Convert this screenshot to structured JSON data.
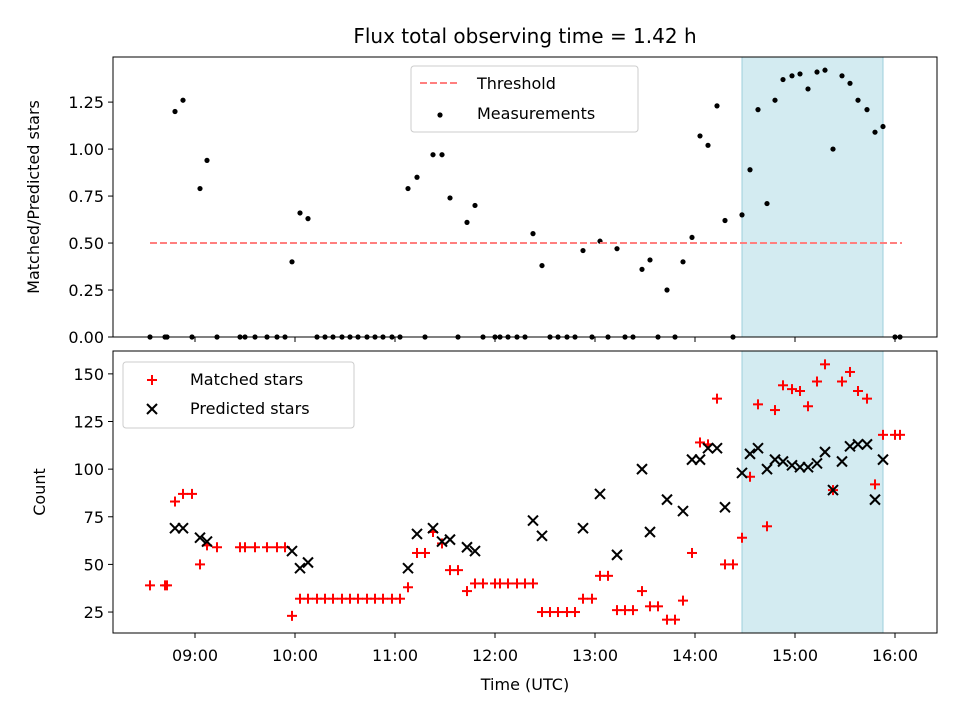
{
  "chart_data": {
    "title": "Flux total observing time = 1.42 h",
    "xlabel": "Time (UTC)",
    "xticks": [
      {
        "v": 9,
        "label": "09:00"
      },
      {
        "v": 10,
        "label": "10:00"
      },
      {
        "v": 11,
        "label": "11:00"
      },
      {
        "v": 12,
        "label": "12:00"
      },
      {
        "v": 13,
        "label": "13:00"
      },
      {
        "v": 14,
        "label": "14:00"
      },
      {
        "v": 15,
        "label": "15:00"
      },
      {
        "v": 16,
        "label": "16:00"
      }
    ],
    "xlim": [
      8.18,
      16.42
    ],
    "highlight_span": [
      14.47,
      15.88
    ],
    "highlight_color": "#d3ebf1",
    "panels": [
      {
        "type": "scatter",
        "ylabel": "Matched/Predicted stars",
        "ylim": [
          0,
          1.49
        ],
        "yticks": [
          {
            "v": 0,
            "label": "0.00"
          },
          {
            "v": 0.25,
            "label": "0.25"
          },
          {
            "v": 0.5,
            "label": "0.50"
          },
          {
            "v": 0.75,
            "label": "0.75"
          },
          {
            "v": 1.0,
            "label": "1.00"
          },
          {
            "v": 1.25,
            "label": "1.25"
          }
        ],
        "threshold": {
          "name": "Threshold",
          "value": 0.5,
          "x_range": [
            8.55,
            16.07
          ],
          "color": "#ff7f7f"
        },
        "legend": {
          "position": "top-center",
          "entries": [
            "Threshold",
            "Measurements"
          ]
        },
        "series": [
          {
            "name": "Measurements",
            "color": "#000000",
            "points": [
              [
                8.55,
                0
              ],
              [
                8.7,
                0
              ],
              [
                8.72,
                0
              ],
              [
                8.8,
                1.2
              ],
              [
                8.88,
                1.26
              ],
              [
                8.97,
                0
              ],
              [
                9.05,
                0.79
              ],
              [
                9.12,
                0.94
              ],
              [
                9.22,
                0
              ],
              [
                9.45,
                0
              ],
              [
                9.5,
                0
              ],
              [
                9.6,
                0
              ],
              [
                9.72,
                0
              ],
              [
                9.82,
                0
              ],
              [
                9.9,
                0
              ],
              [
                9.97,
                0.4
              ],
              [
                10.05,
                0.66
              ],
              [
                10.13,
                0.63
              ],
              [
                10.22,
                0
              ],
              [
                10.3,
                0
              ],
              [
                10.38,
                0
              ],
              [
                10.47,
                0
              ],
              [
                10.55,
                0
              ],
              [
                10.63,
                0
              ],
              [
                10.72,
                0
              ],
              [
                10.8,
                0
              ],
              [
                10.88,
                0
              ],
              [
                10.97,
                0
              ],
              [
                11.05,
                0
              ],
              [
                11.13,
                0.79
              ],
              [
                11.22,
                0.85
              ],
              [
                11.3,
                0
              ],
              [
                11.38,
                0.97
              ],
              [
                11.47,
                0.97
              ],
              [
                11.55,
                0.74
              ],
              [
                11.63,
                0
              ],
              [
                11.72,
                0.61
              ],
              [
                11.8,
                0.7
              ],
              [
                11.88,
                0
              ],
              [
                12.0,
                0
              ],
              [
                12.05,
                0
              ],
              [
                12.13,
                0
              ],
              [
                12.22,
                0
              ],
              [
                12.3,
                0
              ],
              [
                12.38,
                0.55
              ],
              [
                12.47,
                0.38
              ],
              [
                12.55,
                0
              ],
              [
                12.63,
                0
              ],
              [
                12.72,
                0
              ],
              [
                12.8,
                0
              ],
              [
                12.88,
                0.46
              ],
              [
                12.97,
                0
              ],
              [
                13.05,
                0.51
              ],
              [
                13.13,
                0
              ],
              [
                13.22,
                0.47
              ],
              [
                13.3,
                0
              ],
              [
                13.38,
                0
              ],
              [
                13.47,
                0.36
              ],
              [
                13.55,
                0.41
              ],
              [
                13.63,
                0
              ],
              [
                13.72,
                0.25
              ],
              [
                13.8,
                0
              ],
              [
                13.88,
                0.4
              ],
              [
                13.97,
                0.53
              ],
              [
                14.05,
                1.07
              ],
              [
                14.13,
                1.02
              ],
              [
                14.22,
                1.23
              ],
              [
                14.3,
                0.62
              ],
              [
                14.38,
                0
              ],
              [
                14.47,
                0.65
              ],
              [
                14.55,
                0.89
              ],
              [
                14.63,
                1.21
              ],
              [
                14.72,
                0.71
              ],
              [
                14.8,
                1.26
              ],
              [
                14.88,
                1.37
              ],
              [
                14.97,
                1.39
              ],
              [
                15.05,
                1.4
              ],
              [
                15.13,
                1.32
              ],
              [
                15.22,
                1.41
              ],
              [
                15.3,
                1.42
              ],
              [
                15.38,
                1.0
              ],
              [
                15.47,
                1.39
              ],
              [
                15.55,
                1.35
              ],
              [
                15.63,
                1.26
              ],
              [
                15.72,
                1.21
              ],
              [
                15.8,
                1.09
              ],
              [
                15.88,
                1.12
              ],
              [
                16.0,
                0
              ],
              [
                16.05,
                0
              ]
            ]
          }
        ]
      },
      {
        "type": "scatter",
        "ylabel": "Count",
        "ylim": [
          14,
          162
        ],
        "yticks": [
          {
            "v": 25,
            "label": "25"
          },
          {
            "v": 50,
            "label": "50"
          },
          {
            "v": 75,
            "label": "75"
          },
          {
            "v": 100,
            "label": "100"
          },
          {
            "v": 125,
            "label": "125"
          },
          {
            "v": 150,
            "label": "150"
          }
        ],
        "legend": {
          "position": "top-left",
          "entries": [
            "Matched stars",
            "Predicted stars"
          ]
        },
        "series": [
          {
            "name": "Matched stars",
            "marker": "+",
            "color": "#ff0000",
            "points": [
              [
                8.55,
                39
              ],
              [
                8.7,
                39
              ],
              [
                8.72,
                39
              ],
              [
                8.8,
                83
              ],
              [
                8.88,
                87
              ],
              [
                8.97,
                87
              ],
              [
                9.05,
                50
              ],
              [
                9.12,
                60
              ],
              [
                9.22,
                59
              ],
              [
                9.45,
                59
              ],
              [
                9.5,
                59
              ],
              [
                9.6,
                59
              ],
              [
                9.72,
                59
              ],
              [
                9.82,
                59
              ],
              [
                9.9,
                59
              ],
              [
                9.97,
                23
              ],
              [
                10.05,
                32
              ],
              [
                10.13,
                32
              ],
              [
                10.22,
                32
              ],
              [
                10.3,
                32
              ],
              [
                10.38,
                32
              ],
              [
                10.47,
                32
              ],
              [
                10.55,
                32
              ],
              [
                10.63,
                32
              ],
              [
                10.72,
                32
              ],
              [
                10.8,
                32
              ],
              [
                10.88,
                32
              ],
              [
                10.97,
                32
              ],
              [
                11.05,
                32
              ],
              [
                11.13,
                38
              ],
              [
                11.22,
                56
              ],
              [
                11.3,
                56
              ],
              [
                11.38,
                67
              ],
              [
                11.47,
                61
              ],
              [
                11.55,
                47
              ],
              [
                11.63,
                47
              ],
              [
                11.72,
                36
              ],
              [
                11.8,
                40
              ],
              [
                11.88,
                40
              ],
              [
                12.0,
                40
              ],
              [
                12.05,
                40
              ],
              [
                12.13,
                40
              ],
              [
                12.22,
                40
              ],
              [
                12.3,
                40
              ],
              [
                12.38,
                40
              ],
              [
                12.47,
                25
              ],
              [
                12.55,
                25
              ],
              [
                12.63,
                25
              ],
              [
                12.72,
                25
              ],
              [
                12.8,
                25
              ],
              [
                12.88,
                32
              ],
              [
                12.97,
                32
              ],
              [
                13.05,
                44
              ],
              [
                13.13,
                44
              ],
              [
                13.22,
                26
              ],
              [
                13.3,
                26
              ],
              [
                13.38,
                26
              ],
              [
                13.47,
                36
              ],
              [
                13.55,
                28
              ],
              [
                13.63,
                28
              ],
              [
                13.72,
                21
              ],
              [
                13.8,
                21
              ],
              [
                13.88,
                31
              ],
              [
                13.97,
                56
              ],
              [
                14.05,
                114
              ],
              [
                14.13,
                113
              ],
              [
                14.22,
                137
              ],
              [
                14.3,
                50
              ],
              [
                14.38,
                50
              ],
              [
                14.47,
                64
              ],
              [
                14.55,
                96
              ],
              [
                14.63,
                134
              ],
              [
                14.72,
                70
              ],
              [
                14.8,
                131
              ],
              [
                14.88,
                144
              ],
              [
                14.97,
                142
              ],
              [
                15.05,
                141
              ],
              [
                15.13,
                133
              ],
              [
                15.22,
                146
              ],
              [
                15.3,
                155
              ],
              [
                15.38,
                89
              ],
              [
                15.47,
                146
              ],
              [
                15.55,
                151
              ],
              [
                15.63,
                141
              ],
              [
                15.72,
                137
              ],
              [
                15.8,
                92
              ],
              [
                15.88,
                118
              ],
              [
                16.0,
                118
              ],
              [
                16.05,
                118
              ]
            ]
          },
          {
            "name": "Predicted stars",
            "marker": "x",
            "color": "#000000",
            "points": [
              [
                8.8,
                69
              ],
              [
                8.88,
                69
              ],
              [
                9.05,
                64
              ],
              [
                9.12,
                62
              ],
              [
                9.97,
                57
              ],
              [
                10.05,
                48
              ],
              [
                10.13,
                51
              ],
              [
                11.13,
                48
              ],
              [
                11.22,
                66
              ],
              [
                11.38,
                69
              ],
              [
                11.47,
                62
              ],
              [
                11.55,
                63
              ],
              [
                11.72,
                59
              ],
              [
                11.8,
                57
              ],
              [
                12.38,
                73
              ],
              [
                12.47,
                65
              ],
              [
                12.88,
                69
              ],
              [
                13.05,
                87
              ],
              [
                13.22,
                55
              ],
              [
                13.47,
                100
              ],
              [
                13.55,
                67
              ],
              [
                13.72,
                84
              ],
              [
                13.88,
                78
              ],
              [
                13.97,
                105
              ],
              [
                14.05,
                105
              ],
              [
                14.13,
                111
              ],
              [
                14.22,
                111
              ],
              [
                14.3,
                80
              ],
              [
                14.47,
                98
              ],
              [
                14.55,
                108
              ],
              [
                14.63,
                111
              ],
              [
                14.72,
                100
              ],
              [
                14.8,
                105
              ],
              [
                14.88,
                104
              ],
              [
                14.97,
                102
              ],
              [
                15.05,
                101
              ],
              [
                15.13,
                101
              ],
              [
                15.22,
                103
              ],
              [
                15.3,
                109
              ],
              [
                15.38,
                89
              ],
              [
                15.47,
                104
              ],
              [
                15.55,
                112
              ],
              [
                15.63,
                113
              ],
              [
                15.72,
                113
              ],
              [
                15.8,
                84
              ],
              [
                15.88,
                105
              ]
            ]
          }
        ]
      }
    ]
  }
}
